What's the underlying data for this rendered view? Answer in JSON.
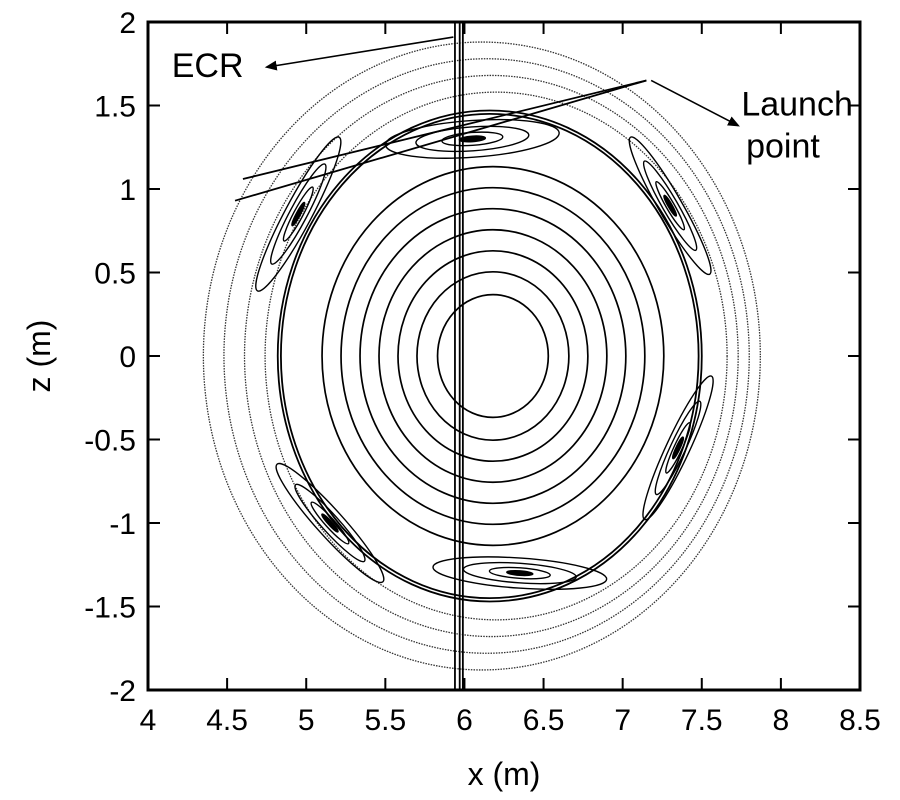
{
  "chart_data": {
    "type": "line",
    "title": "",
    "xlabel": "x (m)",
    "ylabel": "z (m)",
    "xlim": [
      4,
      8.5
    ],
    "ylim": [
      -2,
      2
    ],
    "xticks": [
      "4",
      "4.5",
      "5",
      "5.5",
      "6",
      "6.5",
      "7",
      "7.5",
      "8",
      "8.5"
    ],
    "yticks": [
      "2",
      "1.5",
      "1",
      "0.5",
      "0",
      "-0.5",
      "-1",
      "-1.5",
      "-2"
    ],
    "grid": false,
    "flux_surfaces": {
      "magnetic_axis": [
        6.18,
        0.0
      ],
      "inner_radii": [
        0.35,
        0.48,
        0.6,
        0.72,
        0.84,
        0.96,
        1.08
      ],
      "outer_radii": [
        1.58,
        1.68,
        1.78,
        1.88
      ],
      "separatrix": {
        "center": [
          6.16,
          0.0
        ],
        "rx": 1.32,
        "rz": 1.45
      }
    },
    "islands": [
      {
        "center": [
          6.05,
          1.3
        ]
      },
      {
        "center": [
          6.35,
          -1.3
        ]
      },
      {
        "center": [
          5.0,
          0.8
        ]
      },
      {
        "center": [
          7.3,
          0.9
        ]
      },
      {
        "center": [
          5.15,
          -1.0
        ]
      },
      {
        "center": [
          7.35,
          -0.6
        ]
      }
    ],
    "ecr_layer_x": [
      5.94,
      5.97,
      5.99
    ],
    "rays": [
      {
        "from": [
          7.15,
          1.65
        ],
        "to": [
          4.6,
          1.06
        ]
      },
      {
        "from": [
          7.15,
          1.65
        ],
        "to": [
          4.55,
          0.93
        ]
      }
    ],
    "annotations": [
      {
        "text": "ECR",
        "at": [
          4.15,
          1.67
        ],
        "arrow_to": [
          5.93,
          1.91
        ]
      },
      {
        "text": "Launch",
        "at": [
          7.75,
          1.44
        ],
        "arrow_from": [
          7.18,
          1.65
        ],
        "arrow_to": [
          7.73,
          1.38
        ]
      },
      {
        "text": "point",
        "at": [
          7.78,
          1.19
        ]
      }
    ]
  }
}
